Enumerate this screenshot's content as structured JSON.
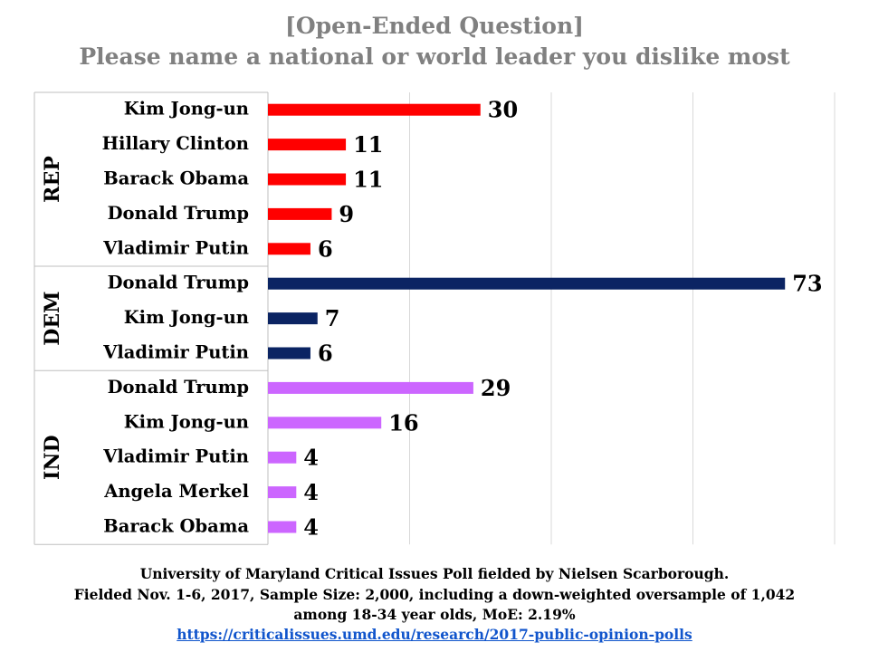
{
  "header": {
    "title_line1": "[Open-Ended Question]",
    "title_line2": "Please name a national or world leader you dislike most"
  },
  "colors": {
    "REP": "#ff0000",
    "DEM": "#0b2463",
    "IND": "#cc66ff",
    "grid": "#d9d9d9",
    "title": "#808080"
  },
  "chart_data": {
    "type": "bar",
    "orientation": "horizontal",
    "title": "Please name a national or world leader you dislike most",
    "subtitle": "[Open-Ended Question]",
    "xlabel": "",
    "ylabel": "",
    "xlim": [
      0,
      80
    ],
    "grid": true,
    "legend": "none",
    "groups": [
      {
        "name": "REP",
        "color": "#ff0000",
        "categories": [
          "Kim Jong-un",
          "Hillary Clinton",
          "Barack Obama",
          "Donald Trump",
          "Vladimir Putin"
        ],
        "values": [
          30,
          11,
          11,
          9,
          6
        ]
      },
      {
        "name": "DEM",
        "color": "#0b2463",
        "categories": [
          "Donald Trump",
          "Kim Jong-un",
          "Vladimir Putin"
        ],
        "values": [
          73,
          7,
          6
        ]
      },
      {
        "name": "IND",
        "color": "#cc66ff",
        "categories": [
          "Donald Trump",
          "Kim Jong-un",
          "Vladimir Putin",
          "Angela Merkel",
          "Barack Obama"
        ],
        "values": [
          29,
          16,
          4,
          4,
          4
        ]
      }
    ]
  },
  "footer": {
    "line1": "University of Maryland Critical Issues Poll fielded by Nielsen Scarborough.",
    "line2": "Fielded Nov. 1-6, 2017, Sample Size: 2,000, including a down-weighted oversample of 1,042",
    "line3": "among 18-34 year olds, MoE: 2.19%",
    "link": "https://criticalissues.umd.edu/research/2017-public-opinion-polls"
  }
}
